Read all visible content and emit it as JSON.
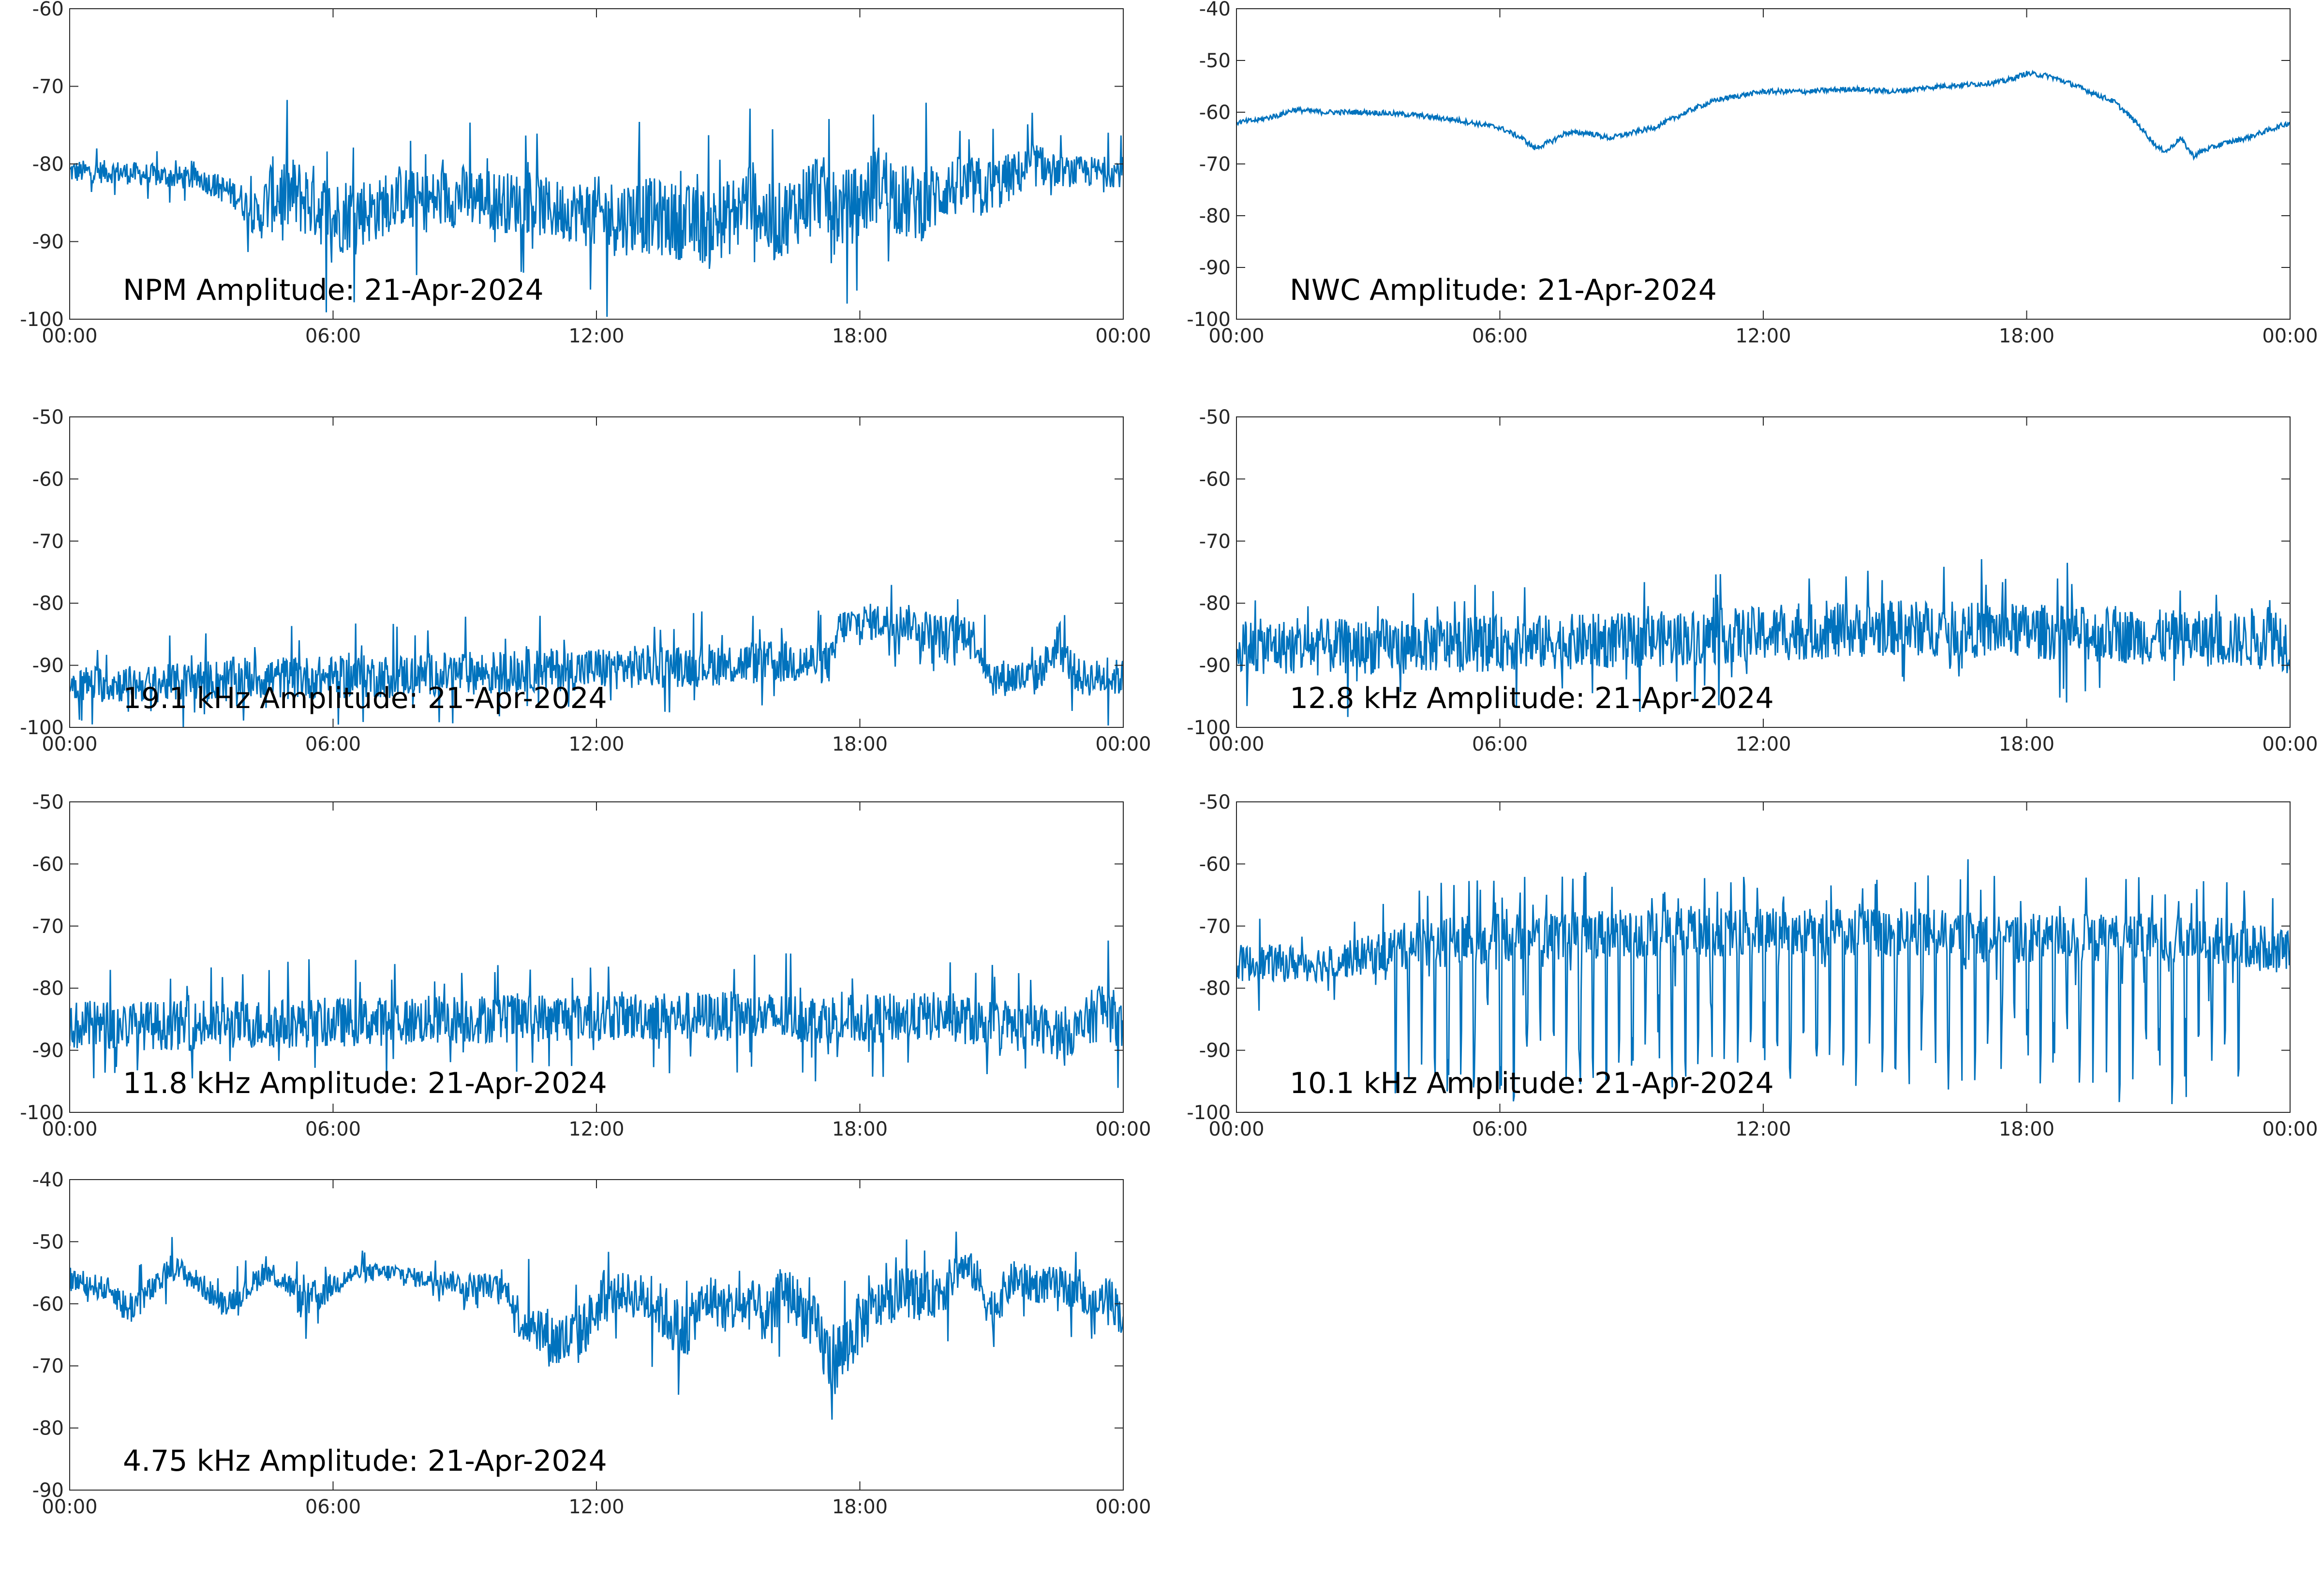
{
  "colors": {
    "line": "#0072BD",
    "axes": "#262626",
    "background": "#ffffff"
  },
  "chart_data": [
    {
      "type": "line",
      "title": "NPM Amplitude: 21-Apr-2024",
      "ylim": [
        -100,
        -60
      ],
      "yticks": [
        "-60",
        "-70",
        "-80",
        "-90",
        "-100"
      ],
      "xticks": [
        "00:00",
        "06:00",
        "12:00",
        "18:00",
        "00:00"
      ],
      "series": [
        {
          "x_hours": [
            0,
            1,
            2,
            3,
            3.8,
            4.3,
            4.6,
            5.1,
            5.6,
            6,
            6.5,
            7,
            7.5,
            8,
            8.5,
            9,
            9.5,
            10,
            10.5,
            11,
            11.5,
            12,
            12.5,
            13,
            13.5,
            14,
            14.5,
            15,
            15.5,
            16,
            16.5,
            17,
            17.5,
            18,
            18.5,
            19,
            19.5,
            20,
            20.5,
            21,
            21.5,
            22,
            22.5,
            23,
            24
          ],
          "values": [
            -81,
            -81,
            -81.5,
            -82,
            -84,
            -87,
            -84,
            -84,
            -85,
            -87,
            -86,
            -86,
            -84,
            -85,
            -84.5,
            -84,
            -84.5,
            -85,
            -85,
            -86,
            -86,
            -86.5,
            -87,
            -86.5,
            -87,
            -87.5,
            -88,
            -87,
            -84,
            -88,
            -86,
            -83,
            -86,
            -85,
            -82,
            -85,
            -85,
            -83,
            -83,
            -83,
            -81.5,
            -80,
            -81,
            -81,
            -81
          ],
          "noise_amplitude": [
            1.5,
            1.5,
            1.5,
            1.5,
            2,
            3,
            5,
            5,
            5,
            5,
            5,
            4,
            4,
            4,
            4,
            4,
            4,
            4,
            4,
            4,
            4,
            5,
            5,
            5,
            5,
            5,
            5,
            5,
            5,
            5,
            5,
            5,
            5,
            5,
            5,
            5,
            5,
            4,
            4,
            4,
            3,
            3,
            2,
            2,
            2
          ]
        }
      ]
    },
    {
      "type": "line",
      "title": "NWC Amplitude: 21-Apr-2024",
      "ylim": [
        -100,
        -40
      ],
      "yticks": [
        "-40",
        "-50",
        "-60",
        "-70",
        "-80",
        "-90",
        "-100"
      ],
      "xticks": [
        "00:00",
        "06:00",
        "12:00",
        "18:00",
        "00:00"
      ],
      "series": [
        {
          "x_hours": [
            0,
            0.5,
            1,
            1.3,
            2,
            3,
            4,
            4.5,
            5,
            6,
            6.5,
            6.8,
            7.2,
            7.5,
            8,
            8.5,
            9,
            9.5,
            10,
            10.5,
            11,
            12,
            13,
            14,
            15,
            16,
            17,
            17.5,
            18,
            18.5,
            19,
            20,
            20.5,
            21,
            21.2,
            21.5,
            21.8,
            22,
            22.5,
            23,
            24
          ],
          "values": [
            -62,
            -61.5,
            -60.5,
            -59.5,
            -60,
            -60,
            -60.5,
            -61,
            -61.5,
            -63,
            -65,
            -67,
            -65.5,
            -64,
            -64,
            -65,
            -64,
            -63,
            -61,
            -59,
            -57.5,
            -56,
            -56,
            -55.5,
            -56,
            -55,
            -54.5,
            -54,
            -52.5,
            -53,
            -54.5,
            -58,
            -62,
            -67,
            -67.5,
            -65,
            -68.5,
            -67.5,
            -66,
            -65,
            -62
          ],
          "noise_amplitude": 0.5
        }
      ]
    },
    {
      "type": "line",
      "title": "19.1 kHz Amplitude: 21-Apr-2024",
      "ylim": [
        -100,
        -50
      ],
      "yticks": [
        "-50",
        "-60",
        "-70",
        "-80",
        "-90",
        "-100"
      ],
      "xticks": [
        "00:00",
        "06:00",
        "12:00",
        "18:00",
        "00:00"
      ],
      "series": [
        {
          "x_hours": [
            0,
            2,
            4,
            6,
            8,
            10,
            12,
            14,
            16,
            17.4,
            17.5,
            18,
            19,
            19.5,
            20,
            20.5,
            21,
            21.5,
            22,
            22.5,
            23,
            24
          ],
          "values": [
            -93,
            -93,
            -92,
            -92,
            -91.5,
            -91,
            -90.5,
            -90,
            -89.5,
            -89.5,
            -84,
            -83,
            -83,
            -84,
            -86,
            -84,
            -92,
            -92,
            -92,
            -87,
            -92,
            -92
          ],
          "noise_amplitude": [
            3,
            3,
            3.5,
            3.5,
            3.5,
            3.5,
            3.5,
            3.5,
            3.5,
            3.5,
            3,
            3,
            3,
            3,
            4,
            3,
            3,
            3,
            3,
            3,
            3,
            3
          ]
        }
      ]
    },
    {
      "type": "line",
      "title": "12.8 kHz Amplitude: 21-Apr-2024",
      "ylim": [
        -100,
        -50
      ],
      "yticks": [
        "-50",
        "-60",
        "-70",
        "-80",
        "-90",
        "-100"
      ],
      "xticks": [
        "00:00",
        "06:00",
        "12:00",
        "18:00",
        "00:00"
      ],
      "series": [
        {
          "x_hours": [
            0,
            3,
            6,
            9,
            12,
            15,
            18,
            21,
            23,
            23.5,
            24
          ],
          "values": [
            -87,
            -87,
            -86.5,
            -86,
            -85,
            -84,
            -84.5,
            -85.5,
            -86,
            -84,
            -87
          ],
          "noise_amplitude": [
            4.5,
            4.5,
            4.5,
            4.5,
            4.5,
            4.5,
            4.5,
            4.5,
            4.5,
            6,
            4.5
          ]
        }
      ]
    },
    {
      "type": "line",
      "title": "11.8 kHz Amplitude: 21-Apr-2024",
      "ylim": [
        -100,
        -50
      ],
      "yticks": [
        "-50",
        "-60",
        "-70",
        "-80",
        "-90",
        "-100"
      ],
      "xticks": [
        "00:00",
        "06:00",
        "12:00",
        "18:00",
        "00:00"
      ],
      "series": [
        {
          "x_hours": [
            0,
            3,
            6,
            9,
            12,
            15,
            18,
            20,
            21,
            23,
            23.5,
            24
          ],
          "values": [
            -86,
            -86,
            -85.5,
            -85,
            -84.5,
            -84.5,
            -85,
            -84.5,
            -86,
            -87,
            -83,
            -86
          ],
          "noise_amplitude": [
            4,
            4,
            4,
            4,
            4,
            4,
            4,
            4,
            4,
            4,
            5,
            4
          ]
        }
      ]
    },
    {
      "type": "line",
      "title": "10.1 kHz Amplitude: 21-Apr-2024",
      "ylim": [
        -100,
        -50
      ],
      "yticks": [
        "-50",
        "-60",
        "-70",
        "-80",
        "-90",
        "-100"
      ],
      "xticks": [
        "00:00",
        "06:00",
        "12:00",
        "18:00",
        "00:00"
      ],
      "series": [
        {
          "x_hours": [
            0,
            2,
            2.8,
            4,
            6,
            9,
            12,
            15,
            18,
            20,
            22,
            23,
            24
          ],
          "values": [
            -76,
            -76,
            -75,
            -73,
            -72,
            -71,
            -71,
            -71,
            -72,
            -72,
            -72,
            -73,
            -74
          ],
          "noise_amplitude": [
            3,
            3,
            3,
            4,
            4,
            4,
            4,
            4,
            4,
            4,
            4,
            4,
            3
          ],
          "pulse_period_hours": 0.3,
          "pulse_depth": 12
        }
      ]
    },
    {
      "type": "line",
      "title": "4.75 kHz Amplitude: 21-Apr-2024",
      "ylim": [
        -90,
        -40
      ],
      "yticks": [
        "-40",
        "-50",
        "-60",
        "-70",
        "-80",
        "-90"
      ],
      "xticks": [
        "00:00",
        "06:00",
        "12:00",
        "18:00",
        "00:00"
      ],
      "series": [
        {
          "x_hours": [
            0,
            0.5,
            1,
            1.3,
            2,
            2.3,
            2.6,
            3,
            3.5,
            4,
            4.4,
            4.6,
            5,
            5.3,
            5.6,
            6,
            6.5,
            7,
            7.5,
            8,
            8.5,
            9,
            9.5,
            10,
            10.3,
            10.6,
            11,
            11.3,
            11.6,
            12,
            12.5,
            13,
            13.3,
            13.6,
            14,
            14.3,
            14.6,
            15,
            15.5,
            16,
            16.2,
            16.5,
            17,
            17.3,
            17.6,
            18,
            18.5,
            19,
            19.5,
            20,
            20.3,
            20.6,
            21,
            21.5,
            22,
            22.5,
            23,
            23.3,
            23.6,
            24
          ],
          "values": [
            -56,
            -57,
            -58,
            -61,
            -57,
            -54,
            -55,
            -57,
            -60,
            -58,
            -55,
            -55,
            -57,
            -60,
            -59,
            -57,
            -55,
            -55,
            -55,
            -56,
            -56,
            -57,
            -57,
            -58,
            -63,
            -63,
            -66,
            -66,
            -65,
            -61,
            -58,
            -59,
            -60,
            -62,
            -65,
            -61,
            -59,
            -61,
            -60,
            -63,
            -57,
            -59,
            -64,
            -69,
            -68,
            -63,
            -60,
            -58,
            -59,
            -57,
            -54,
            -55,
            -61,
            -56,
            -57,
            -57,
            -58,
            -62,
            -58,
            -62
          ],
          "noise_amplitude": [
            2,
            2,
            2,
            3,
            2,
            2,
            2,
            2,
            2,
            2,
            2,
            2,
            2,
            3,
            3,
            2,
            1.5,
            1.5,
            1.5,
            1.5,
            1.5,
            2,
            2,
            2,
            4,
            4,
            5,
            5,
            5,
            4,
            3,
            4,
            4,
            5,
            5,
            4,
            4,
            4,
            4,
            5,
            4,
            4,
            5,
            6,
            6,
            5,
            4,
            4,
            4,
            4,
            3,
            3,
            4,
            3,
            3,
            3,
            3,
            4,
            3,
            4
          ]
        }
      ]
    }
  ]
}
